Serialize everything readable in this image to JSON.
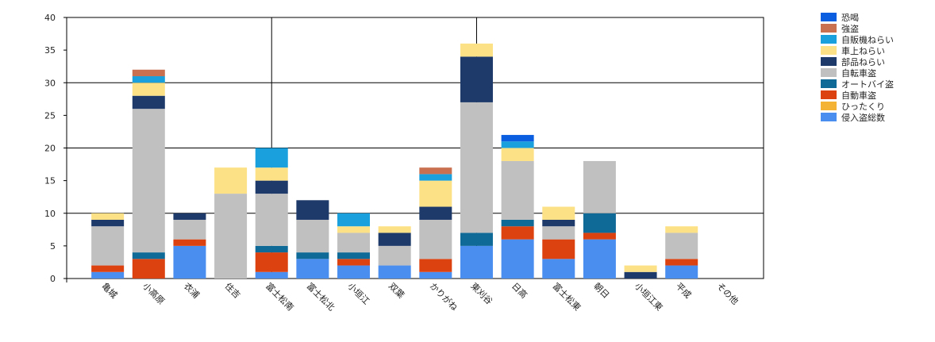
{
  "chart_data": {
    "type": "bar",
    "stacked": true,
    "title": "",
    "xlabel": "",
    "ylabel": "",
    "ylim": [
      0,
      40
    ],
    "yticks": [
      0,
      5,
      10,
      15,
      20,
      25,
      30,
      35,
      40
    ],
    "grid": "major gridlines every 10 on y axis, vertical gridlines every 5 categories",
    "legend": "top-right",
    "categories": [
      "亀城",
      "小高原",
      "衣浦",
      "住吉",
      "富士松南",
      "富士松北",
      "小垣江",
      "双葉",
      "かりがね",
      "東刈谷",
      "日高",
      "富士松東",
      "朝日",
      "小垣江東",
      "平成",
      "その他"
    ],
    "series": [
      {
        "name": "侵入盗総数",
        "color": "#4a8ef0",
        "values": [
          1,
          0,
          5,
          0,
          1,
          3,
          2,
          2,
          1,
          5,
          6,
          3,
          6,
          0,
          2,
          0
        ]
      },
      {
        "name": "ひったくり",
        "color": "#f5b335",
        "values": [
          0,
          0,
          0,
          0,
          0,
          0,
          0,
          0,
          0,
          0,
          0,
          0,
          0,
          0,
          0,
          0
        ]
      },
      {
        "name": "自動車盗",
        "color": "#dc4210",
        "values": [
          1,
          3,
          1,
          0,
          3,
          0,
          1,
          0,
          2,
          0,
          2,
          3,
          1,
          0,
          1,
          0
        ]
      },
      {
        "name": "オートバイ盗",
        "color": "#106a98",
        "values": [
          0,
          1,
          0,
          0,
          1,
          1,
          1,
          0,
          0,
          2,
          1,
          0,
          3,
          0,
          0,
          0
        ]
      },
      {
        "name": "自転車盗",
        "color": "#c0c0c0",
        "values": [
          6,
          22,
          3,
          13,
          8,
          5,
          3,
          3,
          6,
          20,
          9,
          2,
          8,
          0,
          4,
          0
        ]
      },
      {
        "name": "部品ねらい",
        "color": "#1e3a6a",
        "values": [
          1,
          2,
          1,
          0,
          2,
          3,
          0,
          2,
          2,
          7,
          0,
          1,
          0,
          1,
          0,
          0
        ]
      },
      {
        "name": "車上ねらい",
        "color": "#fde186",
        "values": [
          1,
          2,
          0,
          4,
          2,
          0,
          1,
          1,
          4,
          2,
          2,
          2,
          0,
          1,
          1,
          0
        ]
      },
      {
        "name": "自販機ねらい",
        "color": "#1aa0dc",
        "values": [
          0,
          1,
          0,
          0,
          3,
          0,
          2,
          0,
          1,
          0,
          1,
          0,
          0,
          0,
          0,
          0
        ]
      },
      {
        "name": "強盗",
        "color": "#c87050",
        "values": [
          0,
          1,
          0,
          0,
          0,
          0,
          0,
          0,
          1,
          0,
          0,
          0,
          0,
          0,
          0,
          0
        ]
      },
      {
        "name": "恐喝",
        "color": "#0c5ee0",
        "values": [
          0,
          0,
          0,
          0,
          0,
          0,
          0,
          0,
          0,
          0,
          1,
          0,
          0,
          0,
          0,
          0
        ]
      }
    ]
  }
}
